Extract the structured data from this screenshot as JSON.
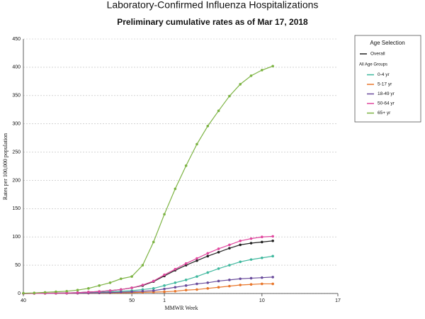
{
  "chart_data": {
    "type": "line",
    "title": "Laboratory-Confirmed Influenza Hospitalizations",
    "subtitle": "Preliminary cumulative rates as of Mar 17, 2018",
    "x_label": "MMWR Week",
    "y_label": "Rates per 100,000 population",
    "categories": [
      "40",
      null,
      null,
      null,
      null,
      null,
      null,
      null,
      null,
      null,
      "50",
      null,
      null,
      "1",
      null,
      null,
      null,
      null,
      null,
      null,
      null,
      null,
      "10",
      null,
      null,
      null,
      null,
      null,
      null,
      "17"
    ],
    "ylim": [
      0,
      450
    ],
    "yticks": [
      0,
      50,
      100,
      150,
      200,
      250,
      300,
      350,
      400,
      450
    ],
    "grid": true,
    "legend_title": "Age Selection",
    "legend_group_label": "All Age Groups",
    "series": [
      {
        "name": "Overall",
        "color": "#222222",
        "values": [
          0,
          0.2,
          0.4,
          0.7,
          1,
          1.5,
          2.5,
          3.5,
          5,
          7,
          10,
          14,
          21,
          31,
          41,
          50,
          58,
          66,
          73,
          80,
          86,
          89,
          91,
          93,
          null,
          null,
          null,
          null,
          null,
          null
        ]
      },
      {
        "name": "0-4 yr",
        "color": "#3fb89e",
        "values": [
          0,
          0.2,
          0.4,
          0.6,
          0.9,
          1.2,
          1.7,
          2.3,
          3,
          4,
          5,
          7,
          9,
          14,
          19,
          24,
          30,
          37,
          44,
          50,
          56,
          60,
          63,
          66,
          null,
          null,
          null,
          null,
          null,
          null
        ]
      },
      {
        "name": "5-17 yr",
        "color": "#e8762b",
        "values": [
          0,
          0.1,
          0.1,
          0.2,
          0.3,
          0.4,
          0.6,
          0.8,
          1,
          1.3,
          1.6,
          2,
          2.5,
          3,
          4,
          6,
          7,
          9,
          11,
          13,
          15,
          16,
          17,
          17,
          null,
          null,
          null,
          null,
          null,
          null
        ]
      },
      {
        "name": "18-49 yr",
        "color": "#6a4c9c",
        "values": [
          0,
          0.1,
          0.2,
          0.3,
          0.4,
          0.6,
          0.9,
          1.2,
          1.7,
          2.3,
          3,
          4,
          5,
          8,
          11,
          14,
          17,
          19,
          22,
          24,
          26,
          27,
          28,
          29,
          null,
          null,
          null,
          null,
          null,
          null
        ]
      },
      {
        "name": "50-64 yr",
        "color": "#e0479e",
        "values": [
          0,
          0.2,
          0.4,
          0.7,
          1,
          1.5,
          2.5,
          3.5,
          5,
          7,
          10,
          15,
          22,
          33,
          43,
          53,
          62,
          71,
          79,
          86,
          93,
          97,
          100,
          101,
          null,
          null,
          null,
          null,
          null,
          null
        ]
      },
      {
        "name": "65+ yr",
        "color": "#7cb342",
        "values": [
          0.5,
          1,
          2,
          3,
          4,
          6,
          9,
          14,
          19,
          26,
          30,
          50,
          91,
          140,
          185,
          226,
          264,
          296,
          323,
          349,
          370,
          385,
          395,
          402,
          null,
          null,
          null,
          null,
          null,
          null
        ]
      }
    ]
  }
}
